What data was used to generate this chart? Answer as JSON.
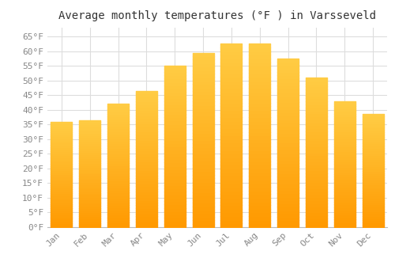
{
  "title": "Average monthly temperatures (°F ) in Varsseveld",
  "months": [
    "Jan",
    "Feb",
    "Mar",
    "Apr",
    "May",
    "Jun",
    "Jul",
    "Aug",
    "Sep",
    "Oct",
    "Nov",
    "Dec"
  ],
  "values": [
    36,
    36.5,
    42,
    46.5,
    55,
    59.5,
    62.5,
    62.5,
    57.5,
    51,
    43,
    38.5
  ],
  "bar_color": "#FFAA00",
  "bar_color_light": "#FFD060",
  "background_color": "#FFFFFF",
  "grid_color": "#DDDDDD",
  "ytick_labels": [
    "0°F",
    "5°F",
    "10°F",
    "15°F",
    "20°F",
    "25°F",
    "30°F",
    "35°F",
    "40°F",
    "45°F",
    "50°F",
    "55°F",
    "60°F",
    "65°F"
  ],
  "ytick_values": [
    0,
    5,
    10,
    15,
    20,
    25,
    30,
    35,
    40,
    45,
    50,
    55,
    60,
    65
  ],
  "ylim": [
    0,
    68
  ],
  "title_fontsize": 10,
  "tick_fontsize": 8,
  "tick_font_color": "#888888"
}
